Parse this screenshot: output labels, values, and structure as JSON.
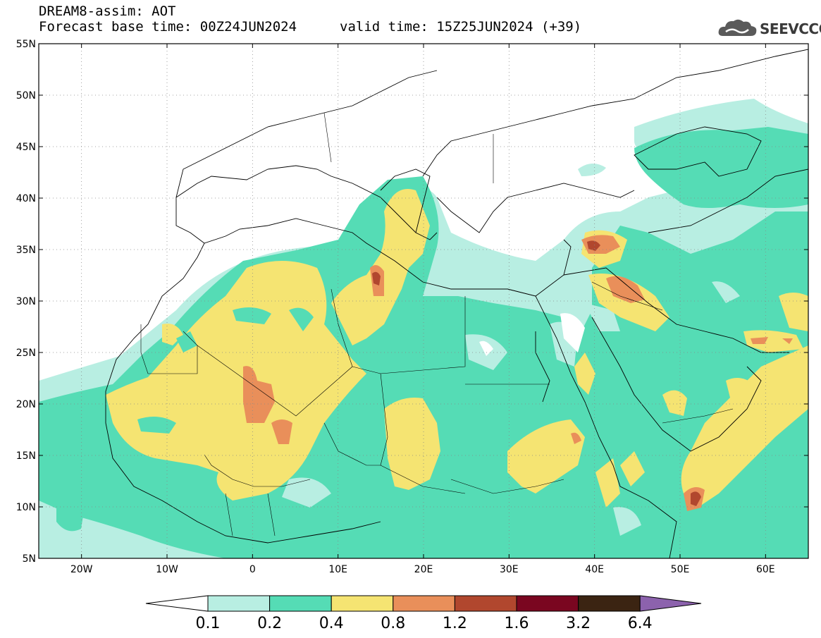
{
  "header": {
    "title": "DREAM8-assim: AOT",
    "base_time": "Forecast base time: 00Z24JUN2024",
    "valid_time": "valid time: 15Z25JUN2024 (+39)"
  },
  "logo": {
    "text": "SEEVCCC",
    "icon": "cloud-icon"
  },
  "map": {
    "lon_range": [
      -25,
      65
    ],
    "lat_range": [
      5,
      55
    ],
    "lon_ticks": [
      "20W",
      "10W",
      "0",
      "10E",
      "20E",
      "30E",
      "40E",
      "50E",
      "60E"
    ],
    "lat_ticks": [
      "5N",
      "10N",
      "15N",
      "20N",
      "25N",
      "30N",
      "35N",
      "40N",
      "45N",
      "50N",
      "55N"
    ],
    "grid": "dotted"
  },
  "colorbar": {
    "labels": [
      "0.1",
      "0.2",
      "0.4",
      "0.8",
      "1.2",
      "1.6",
      "3.2",
      "6.4"
    ],
    "colors": [
      "#ffffff",
      "#b8eee2",
      "#55dcb5",
      "#f5e472",
      "#e98f5a",
      "#b1472e",
      "#7a0620",
      "#3b2412",
      "#8c62ad"
    ]
  }
}
